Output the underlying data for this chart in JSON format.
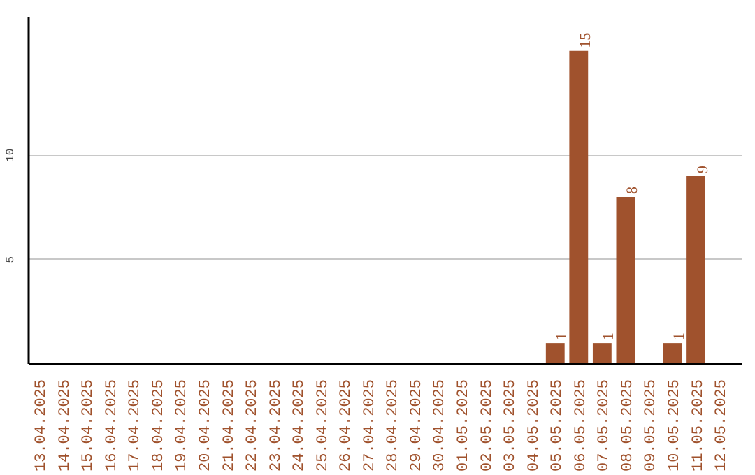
{
  "chart_data": {
    "type": "bar",
    "categories": [
      "13.04.2025",
      "14.04.2025",
      "15.04.2025",
      "16.04.2025",
      "17.04.2025",
      "18.04.2025",
      "19.04.2025",
      "20.04.2025",
      "21.04.2025",
      "22.04.2025",
      "23.04.2025",
      "24.04.2025",
      "25.04.2025",
      "26.04.2025",
      "27.04.2025",
      "28.04.2025",
      "29.04.2025",
      "30.04.2025",
      "01.05.2025",
      "02.05.2025",
      "03.05.2025",
      "04.05.2025",
      "05.05.2025",
      "06.05.2025",
      "07.05.2025",
      "08.05.2025",
      "09.05.2025",
      "10.05.2025",
      "11.05.2025",
      "12.05.2025"
    ],
    "values": [
      0,
      0,
      0,
      0,
      0,
      0,
      0,
      0,
      0,
      0,
      0,
      0,
      0,
      0,
      0,
      0,
      0,
      0,
      0,
      0,
      0,
      0,
      1,
      15,
      1,
      8,
      0,
      1,
      9,
      0
    ],
    "value_labels": [
      null,
      null,
      null,
      null,
      null,
      null,
      null,
      null,
      null,
      null,
      null,
      null,
      null,
      null,
      null,
      null,
      null,
      null,
      null,
      null,
      null,
      null,
      "1",
      "15",
      "1",
      "8",
      null,
      "1",
      "9",
      null
    ],
    "color": "#a0522d",
    "ylim": [
      0,
      16.6
    ],
    "yticks": [
      5,
      10
    ],
    "grid": "y"
  }
}
